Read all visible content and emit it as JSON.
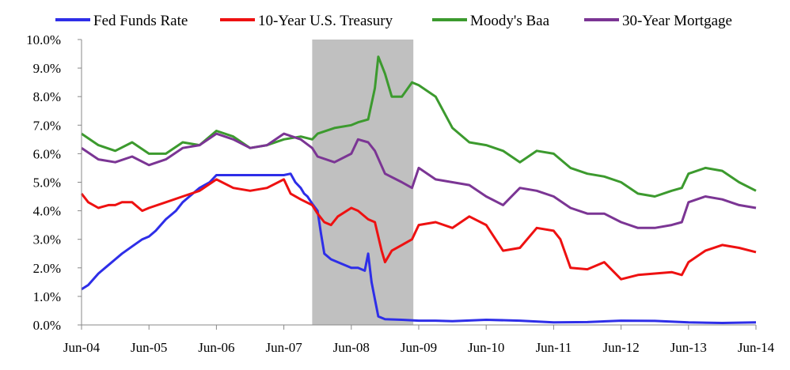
{
  "chart_data": {
    "type": "line",
    "title": "",
    "xlabel": "",
    "ylabel": "",
    "x_ticks": [
      "Jun-04",
      "Jun-05",
      "Jun-06",
      "Jun-07",
      "Jun-08",
      "Jun-09",
      "Jun-10",
      "Jun-11",
      "Jun-12",
      "Jun-13",
      "Jun-14"
    ],
    "y_ticks": [
      "0.0%",
      "1.0%",
      "2.0%",
      "3.0%",
      "4.0%",
      "5.0%",
      "6.0%",
      "7.0%",
      "8.0%",
      "9.0%",
      "10.0%"
    ],
    "ylim": [
      0,
      10
    ],
    "xlim": [
      2004.5,
      2014.5
    ],
    "grid": false,
    "legend_position": "top",
    "recession_band": {
      "start": 2007.92,
      "end": 2009.42,
      "color": "#c0c0c0"
    },
    "series": [
      {
        "name": "Fed Funds Rate",
        "color": "#2e2ee8",
        "x": [
          2004.5,
          2004.6,
          2004.75,
          2004.9,
          2005.0,
          2005.1,
          2005.25,
          2005.4,
          2005.5,
          2005.6,
          2005.75,
          2005.9,
          2006.0,
          2006.1,
          2006.25,
          2006.4,
          2006.5,
          2006.75,
          2007.0,
          2007.25,
          2007.5,
          2007.6,
          2007.67,
          2007.75,
          2007.8,
          2007.85,
          2007.92,
          2008.0,
          2008.05,
          2008.1,
          2008.2,
          2008.3,
          2008.5,
          2008.6,
          2008.7,
          2008.75,
          2008.8,
          2008.85,
          2008.9,
          2009.0,
          2009.25,
          2009.5,
          2009.75,
          2010.0,
          2010.5,
          2011.0,
          2011.5,
          2012.0,
          2012.5,
          2013.0,
          2013.5,
          2014.0,
          2014.5
        ],
        "values": [
          1.25,
          1.4,
          1.8,
          2.1,
          2.3,
          2.5,
          2.75,
          3.0,
          3.1,
          3.3,
          3.7,
          4.0,
          4.3,
          4.5,
          4.8,
          5.0,
          5.25,
          5.25,
          5.25,
          5.25,
          5.25,
          5.3,
          5.0,
          4.8,
          4.6,
          4.5,
          4.25,
          4.0,
          3.2,
          2.5,
          2.3,
          2.2,
          2.0,
          2.0,
          1.9,
          2.5,
          1.5,
          0.9,
          0.3,
          0.2,
          0.18,
          0.15,
          0.15,
          0.13,
          0.18,
          0.15,
          0.09,
          0.1,
          0.15,
          0.14,
          0.09,
          0.07,
          0.09
        ]
      },
      {
        "name": "10-Year U.S. Treasury",
        "color": "#ee1111",
        "x": [
          2004.5,
          2004.6,
          2004.75,
          2004.9,
          2005.0,
          2005.1,
          2005.25,
          2005.4,
          2005.5,
          2005.75,
          2006.0,
          2006.25,
          2006.5,
          2006.75,
          2007.0,
          2007.25,
          2007.5,
          2007.6,
          2007.75,
          2007.92,
          2008.0,
          2008.1,
          2008.2,
          2008.3,
          2008.5,
          2008.6,
          2008.75,
          2008.85,
          2008.95,
          2009.0,
          2009.1,
          2009.25,
          2009.4,
          2009.5,
          2009.75,
          2010.0,
          2010.25,
          2010.5,
          2010.75,
          2011.0,
          2011.25,
          2011.5,
          2011.6,
          2011.75,
          2012.0,
          2012.25,
          2012.5,
          2012.75,
          2013.0,
          2013.25,
          2013.4,
          2013.5,
          2013.75,
          2014.0,
          2014.25,
          2014.5
        ],
        "values": [
          4.6,
          4.3,
          4.1,
          4.2,
          4.2,
          4.3,
          4.3,
          4.0,
          4.1,
          4.3,
          4.5,
          4.7,
          5.1,
          4.8,
          4.7,
          4.8,
          5.1,
          4.6,
          4.4,
          4.2,
          3.9,
          3.6,
          3.5,
          3.8,
          4.1,
          4.0,
          3.7,
          3.6,
          2.6,
          2.2,
          2.6,
          2.8,
          3.0,
          3.5,
          3.6,
          3.4,
          3.8,
          3.5,
          2.6,
          2.7,
          3.4,
          3.3,
          3.0,
          2.0,
          1.95,
          2.2,
          1.6,
          1.75,
          1.8,
          1.85,
          1.75,
          2.2,
          2.6,
          2.8,
          2.7,
          2.55
        ]
      },
      {
        "name": "Moody's Baa",
        "color": "#3c9a2e",
        "x": [
          2004.5,
          2004.75,
          2005.0,
          2005.25,
          2005.5,
          2005.75,
          2006.0,
          2006.25,
          2006.5,
          2006.75,
          2007.0,
          2007.25,
          2007.5,
          2007.75,
          2007.92,
          2008.0,
          2008.25,
          2008.5,
          2008.6,
          2008.75,
          2008.85,
          2008.9,
          2009.0,
          2009.1,
          2009.25,
          2009.4,
          2009.5,
          2009.75,
          2010.0,
          2010.25,
          2010.5,
          2010.75,
          2011.0,
          2011.25,
          2011.5,
          2011.75,
          2012.0,
          2012.25,
          2012.5,
          2012.75,
          2013.0,
          2013.25,
          2013.4,
          2013.5,
          2013.75,
          2014.0,
          2014.25,
          2014.5
        ],
        "values": [
          6.7,
          6.3,
          6.1,
          6.4,
          6.0,
          6.0,
          6.4,
          6.3,
          6.8,
          6.6,
          6.2,
          6.3,
          6.5,
          6.6,
          6.5,
          6.7,
          6.9,
          7.0,
          7.1,
          7.2,
          8.3,
          9.4,
          8.8,
          8.0,
          8.0,
          8.5,
          8.4,
          8.0,
          6.9,
          6.4,
          6.3,
          6.1,
          5.7,
          6.1,
          6.0,
          5.5,
          5.3,
          5.2,
          5.0,
          4.6,
          4.5,
          4.7,
          4.8,
          5.3,
          5.5,
          5.4,
          5.0,
          4.7
        ]
      },
      {
        "name": "30-Year Mortgage",
        "color": "#7b3594",
        "x": [
          2004.5,
          2004.75,
          2005.0,
          2005.25,
          2005.5,
          2005.75,
          2006.0,
          2006.25,
          2006.5,
          2006.75,
          2007.0,
          2007.25,
          2007.5,
          2007.75,
          2007.92,
          2008.0,
          2008.25,
          2008.5,
          2008.6,
          2008.75,
          2008.85,
          2009.0,
          2009.25,
          2009.4,
          2009.5,
          2009.75,
          2010.0,
          2010.25,
          2010.5,
          2010.75,
          2011.0,
          2011.25,
          2011.5,
          2011.75,
          2012.0,
          2012.25,
          2012.5,
          2012.75,
          2013.0,
          2013.25,
          2013.4,
          2013.5,
          2013.75,
          2014.0,
          2014.25,
          2014.5
        ],
        "values": [
          6.2,
          5.8,
          5.7,
          5.9,
          5.6,
          5.8,
          6.2,
          6.3,
          6.7,
          6.5,
          6.2,
          6.3,
          6.7,
          6.5,
          6.2,
          5.9,
          5.7,
          6.0,
          6.5,
          6.4,
          6.1,
          5.3,
          5.0,
          4.8,
          5.5,
          5.1,
          5.0,
          4.9,
          4.5,
          4.2,
          4.8,
          4.7,
          4.5,
          4.1,
          3.9,
          3.9,
          3.6,
          3.4,
          3.4,
          3.5,
          3.6,
          4.3,
          4.5,
          4.4,
          4.2,
          4.1
        ]
      }
    ]
  }
}
